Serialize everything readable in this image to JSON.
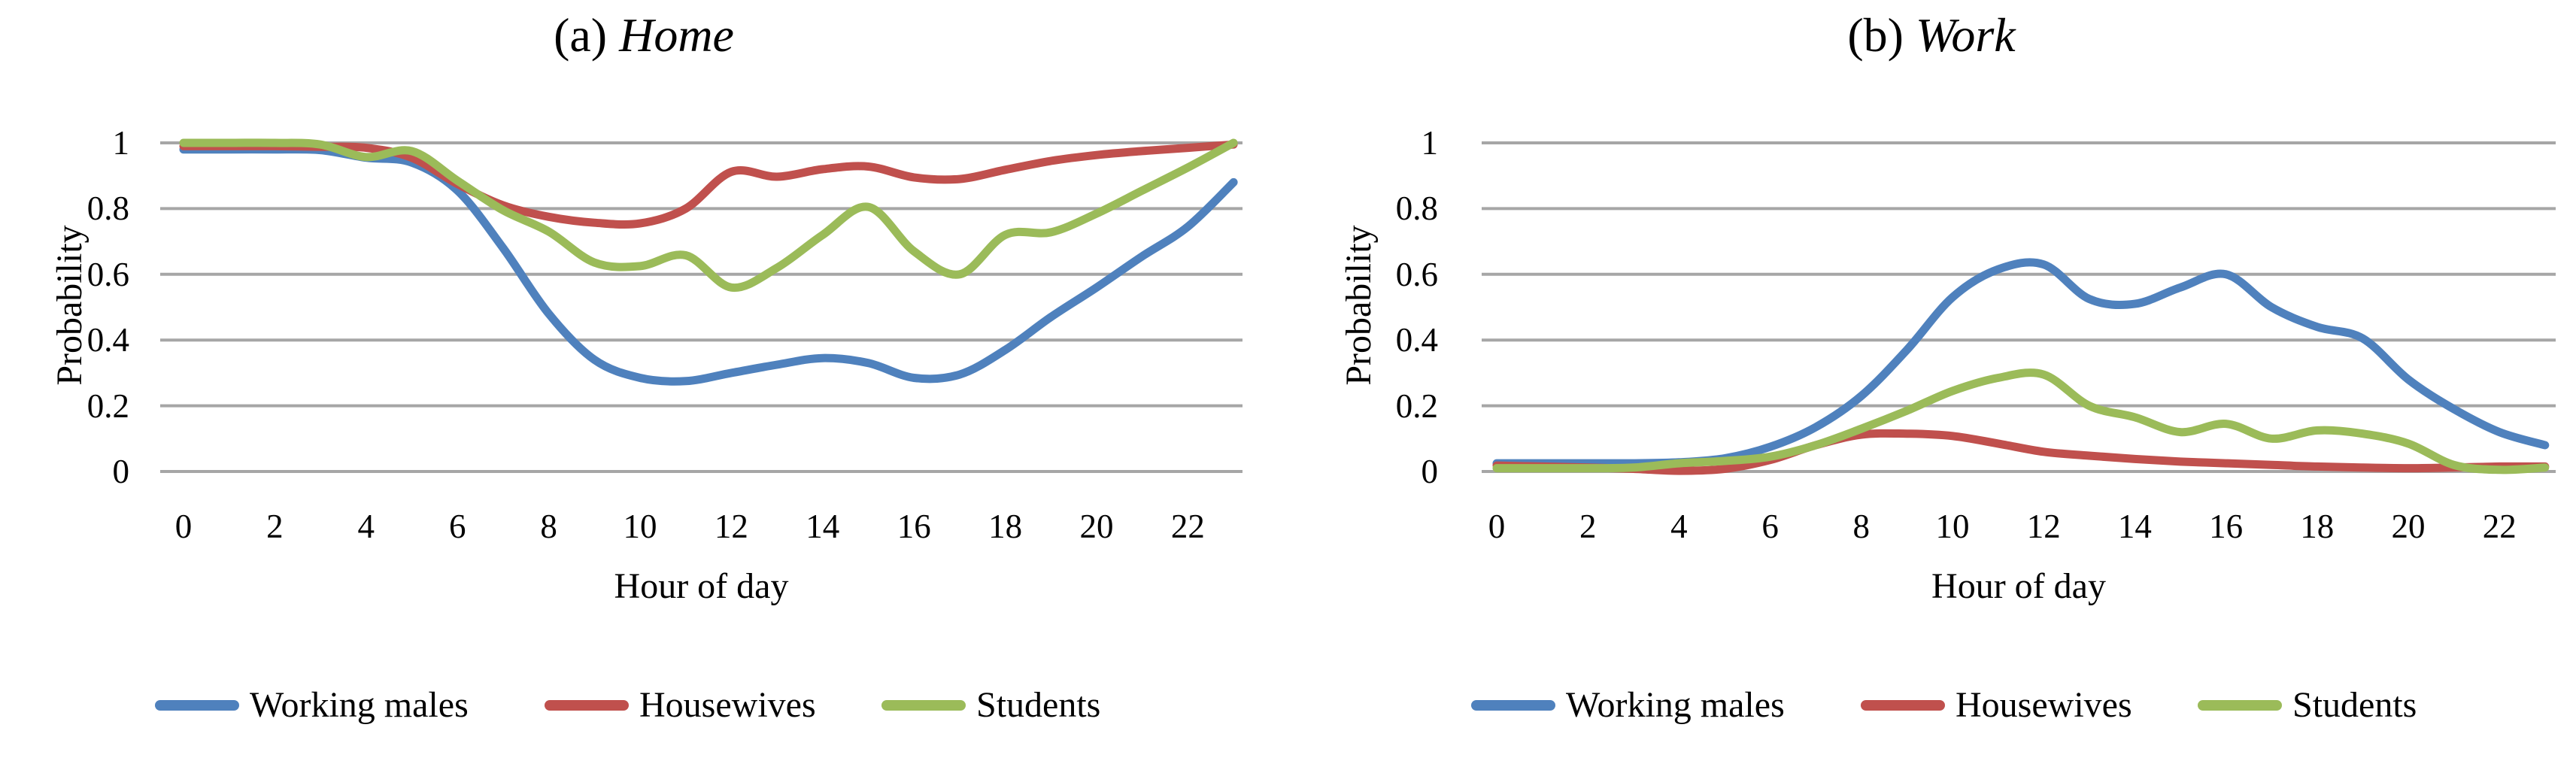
{
  "page": {
    "background": "#ffffff",
    "grid_color": "#A6A6A6"
  },
  "chart_data": [
    {
      "type": "line",
      "title": "(a) Home",
      "title_prefix": "(a)",
      "title_word": "Home",
      "xlabel": "Hour of day",
      "ylabel": "Probability",
      "x": [
        0,
        1,
        2,
        3,
        4,
        5,
        6,
        7,
        8,
        9,
        10,
        11,
        12,
        13,
        14,
        15,
        16,
        17,
        18,
        19,
        20,
        21,
        22,
        23
      ],
      "xtick_labels": [
        "0",
        "2",
        "4",
        "6",
        "8",
        "10",
        "12",
        "14",
        "16",
        "18",
        "20",
        "22"
      ],
      "xtick_values": [
        0,
        2,
        4,
        6,
        8,
        10,
        12,
        14,
        16,
        18,
        20,
        22
      ],
      "ytick_labels": [
        "1",
        "0.8",
        "0.6",
        "0.4",
        "0.2",
        "0"
      ],
      "ytick_values": [
        1,
        0.8,
        0.6,
        0.4,
        0.2,
        0
      ],
      "ylim": [
        0,
        1
      ],
      "grid": "horizontal",
      "legend_position": "bottom",
      "smooth_lines": true,
      "series": [
        {
          "name": "Working males",
          "color": "#4F81BD",
          "values": [
            0.98,
            0.98,
            0.98,
            0.978,
            0.955,
            0.94,
            0.855,
            0.68,
            0.48,
            0.34,
            0.285,
            0.275,
            0.3,
            0.325,
            0.345,
            0.33,
            0.285,
            0.295,
            0.37,
            0.47,
            0.56,
            0.655,
            0.745,
            0.88
          ]
        },
        {
          "name": "Housewives",
          "color": "#C0504D",
          "values": [
            0.99,
            0.99,
            0.99,
            0.988,
            0.985,
            0.955,
            0.875,
            0.81,
            0.775,
            0.757,
            0.755,
            0.8,
            0.912,
            0.897,
            0.92,
            0.928,
            0.895,
            0.89,
            0.918,
            0.945,
            0.963,
            0.975,
            0.985,
            0.995
          ]
        },
        {
          "name": "Students",
          "color": "#9BBB59",
          "values": [
            1.0,
            1.0,
            1.0,
            0.995,
            0.957,
            0.975,
            0.885,
            0.795,
            0.73,
            0.636,
            0.625,
            0.658,
            0.56,
            0.62,
            0.72,
            0.805,
            0.67,
            0.6,
            0.72,
            0.728,
            0.785,
            0.855,
            0.925,
            1.0
          ]
        }
      ]
    },
    {
      "type": "line",
      "title": "(b) Work",
      "title_prefix": "(b)",
      "title_word": "Work",
      "xlabel": "Hour of day",
      "ylabel": "Probability",
      "x": [
        0,
        1,
        2,
        3,
        4,
        5,
        6,
        7,
        8,
        9,
        10,
        11,
        12,
        13,
        14,
        15,
        16,
        17,
        18,
        19,
        20,
        21,
        22,
        23
      ],
      "xtick_labels": [
        "0",
        "2",
        "4",
        "6",
        "8",
        "10",
        "12",
        "14",
        "16",
        "18",
        "20",
        "22"
      ],
      "xtick_values": [
        0,
        2,
        4,
        6,
        8,
        10,
        12,
        14,
        16,
        18,
        20,
        22
      ],
      "ytick_labels": [
        "1",
        "0.8",
        "0.6",
        "0.4",
        "0.2",
        "0"
      ],
      "ytick_values": [
        1,
        0.8,
        0.6,
        0.4,
        0.2,
        0
      ],
      "ylim": [
        0,
        1
      ],
      "grid": "horizontal",
      "legend_position": "bottom",
      "smooth_lines": true,
      "series": [
        {
          "name": "Working males",
          "color": "#4F81BD",
          "values": [
            0.025,
            0.025,
            0.025,
            0.025,
            0.028,
            0.04,
            0.075,
            0.135,
            0.23,
            0.37,
            0.53,
            0.615,
            0.63,
            0.525,
            0.51,
            0.56,
            0.6,
            0.5,
            0.44,
            0.405,
            0.28,
            0.19,
            0.12,
            0.08
          ]
        },
        {
          "name": "Housewives",
          "color": "#C0504D",
          "values": [
            0.018,
            0.015,
            0.012,
            0.008,
            0.002,
            0.008,
            0.035,
            0.08,
            0.112,
            0.115,
            0.108,
            0.085,
            0.06,
            0.048,
            0.038,
            0.03,
            0.025,
            0.02,
            0.015,
            0.012,
            0.01,
            0.012,
            0.015,
            0.015
          ]
        },
        {
          "name": "Students",
          "color": "#9BBB59",
          "values": [
            0.01,
            0.01,
            0.01,
            0.012,
            0.025,
            0.032,
            0.045,
            0.08,
            0.13,
            0.185,
            0.245,
            0.285,
            0.295,
            0.2,
            0.165,
            0.12,
            0.145,
            0.1,
            0.125,
            0.115,
            0.085,
            0.02,
            0.005,
            0.012
          ]
        }
      ]
    }
  ]
}
